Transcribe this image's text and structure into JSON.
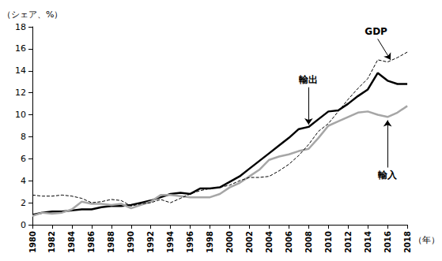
{
  "chart_data": {
    "type": "line",
    "y_label": "（シェア、%）",
    "x_label": "（年）",
    "x": [
      1980,
      1981,
      1982,
      1983,
      1984,
      1985,
      1986,
      1987,
      1988,
      1989,
      1990,
      1991,
      1992,
      1993,
      1994,
      1995,
      1996,
      1997,
      1998,
      1999,
      2000,
      2001,
      2002,
      2003,
      2004,
      2005,
      2006,
      2007,
      2008,
      2009,
      2010,
      2011,
      2012,
      2013,
      2014,
      2015,
      2016,
      2017,
      2018
    ],
    "series": [
      {
        "name": "輸出",
        "color": "#000000",
        "line_style": "solid",
        "values": [
          0.9,
          1.1,
          1.2,
          1.2,
          1.3,
          1.4,
          1.4,
          1.6,
          1.7,
          1.7,
          1.8,
          2.0,
          2.2,
          2.5,
          2.8,
          2.9,
          2.8,
          3.3,
          3.3,
          3.4,
          3.9,
          4.4,
          5.1,
          5.8,
          6.5,
          7.2,
          7.9,
          8.7,
          8.9,
          9.6,
          10.3,
          10.4,
          11.0,
          11.7,
          12.3,
          13.8,
          13.1,
          12.8,
          12.8
        ]
      },
      {
        "name": "輸入",
        "color": "#a6a6a6",
        "line_style": "solid",
        "values": [
          0.8,
          1.1,
          1.0,
          1.1,
          1.4,
          2.1,
          1.9,
          1.9,
          1.8,
          1.9,
          1.5,
          1.8,
          2.1,
          2.7,
          2.7,
          2.6,
          2.5,
          2.5,
          2.5,
          2.8,
          3.4,
          3.8,
          4.4,
          5.0,
          5.9,
          6.2,
          6.4,
          6.7,
          6.9,
          7.9,
          9.0,
          9.4,
          9.8,
          10.2,
          10.3,
          10.0,
          9.8,
          10.2,
          10.8
        ]
      },
      {
        "name": "GDP",
        "color": "#000000",
        "line_style": "dashed",
        "values": [
          2.7,
          2.6,
          2.6,
          2.7,
          2.6,
          2.4,
          2.0,
          2.1,
          2.3,
          2.2,
          1.7,
          1.9,
          2.0,
          2.3,
          2.0,
          2.4,
          2.8,
          3.1,
          3.3,
          3.4,
          3.6,
          4.0,
          4.3,
          4.3,
          4.4,
          4.9,
          5.5,
          6.3,
          7.3,
          8.5,
          9.2,
          10.3,
          11.4,
          12.4,
          13.3,
          15.0,
          14.8,
          15.2,
          15.7
        ]
      }
    ],
    "annotations": [
      {
        "text": "GDP",
        "x": 2015,
        "y": 16.9,
        "arrow_to": [
          2016.3,
          15.0
        ]
      },
      {
        "text": "輸出",
        "x": 2008,
        "y": 12.5,
        "arrow_to": [
          2008,
          9.1
        ]
      },
      {
        "text": "輸入",
        "x": 2016,
        "y": 5.2,
        "arrow_to": [
          2016,
          9.5
        ]
      }
    ],
    "xlim": [
      1980,
      2018
    ],
    "xticks": [
      1980,
      1982,
      1984,
      1986,
      1988,
      1990,
      1992,
      1994,
      1996,
      1998,
      2000,
      2002,
      2004,
      2006,
      2008,
      2010,
      2012,
      2014,
      2016,
      2018
    ],
    "ylim": [
      0,
      18
    ],
    "yticks": [
      0,
      2,
      4,
      6,
      8,
      10,
      12,
      14,
      16,
      18
    ],
    "grid": false
  }
}
